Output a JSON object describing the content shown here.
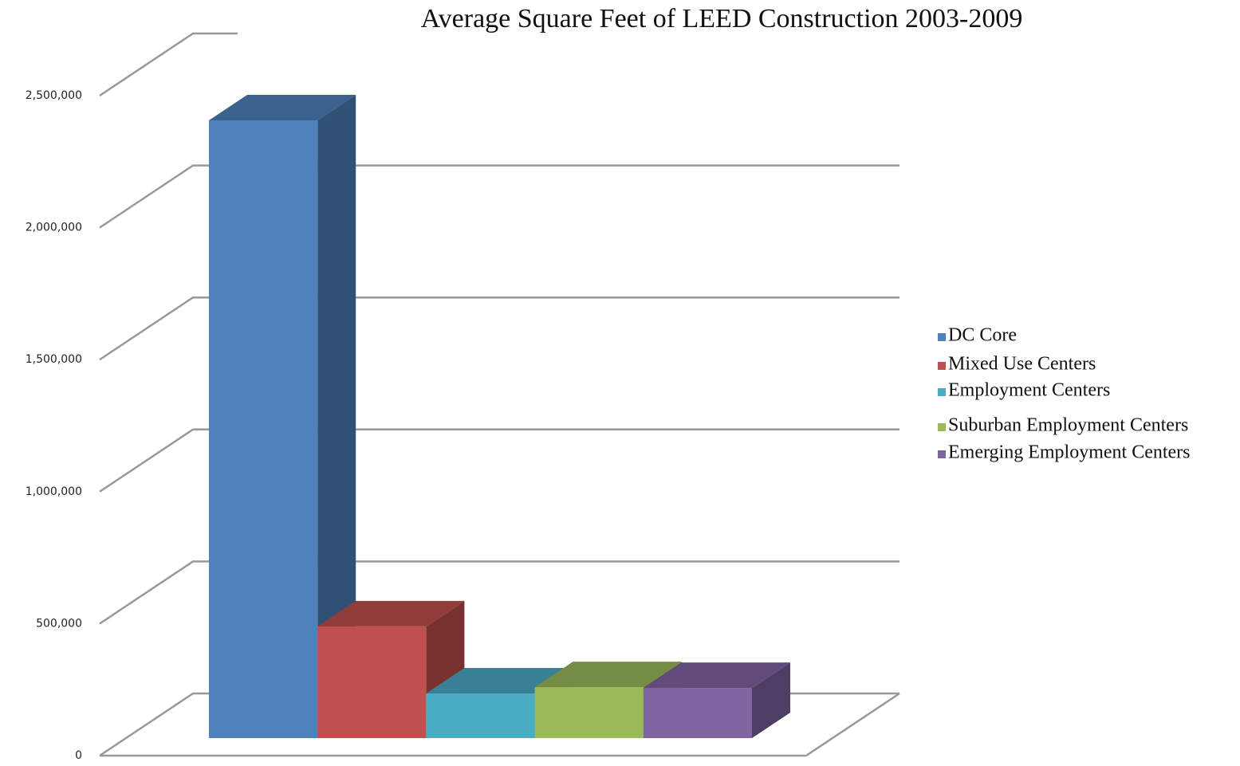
{
  "chart_data": {
    "type": "bar",
    "title": "Average Square Feet of LEED Construction 2003-2009",
    "categories": [
      "DC Core",
      "Mixed Use Centers",
      "Employment Centers",
      "Suburban Employment Centers",
      "Emerging Employment Centers"
    ],
    "values": [
      2340000,
      423000,
      169000,
      193000,
      190000
    ],
    "colors": [
      "#4f81bd",
      "#c0504d",
      "#4bacc6",
      "#9bbb59",
      "#8064a2"
    ],
    "ylim": [
      0,
      2500000
    ],
    "yticks": [
      0,
      {
        "value": 500000,
        "label": "500,000"
      },
      {
        "value": 1000000,
        "label": "1,000,000"
      },
      {
        "value": 1500000,
        "label": "1,500,000"
      },
      {
        "value": 2000000,
        "label": "2,000,000"
      },
      {
        "value": 2500000,
        "label": "2,500,000"
      }
    ],
    "grid": true,
    "legend": "right"
  }
}
